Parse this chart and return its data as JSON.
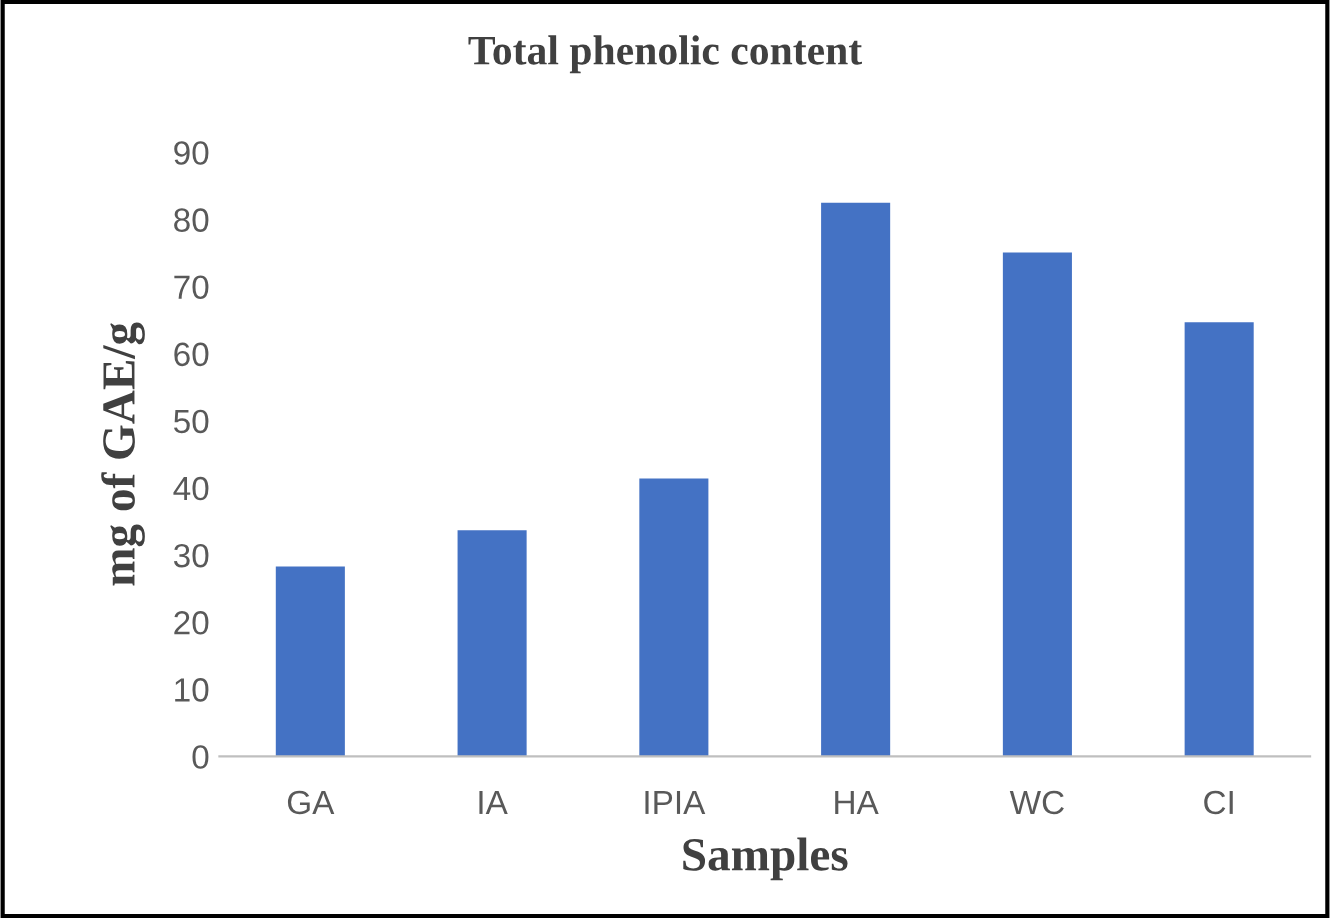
{
  "chart_data": {
    "type": "bar",
    "title": "Total phenolic content",
    "xlabel": "Samples",
    "ylabel": "mg of GAE/g",
    "categories": [
      "GA",
      "IA",
      "IPIA",
      "HA",
      "WC",
      "CI"
    ],
    "values": [
      28.3,
      33.7,
      41.4,
      82.5,
      75.1,
      64.7
    ],
    "color": "#4472c4",
    "ylim": [
      0,
      90
    ],
    "yticks": [
      0,
      10,
      20,
      30,
      40,
      50,
      60,
      70,
      80,
      90
    ],
    "grid": false,
    "legend": false
  }
}
